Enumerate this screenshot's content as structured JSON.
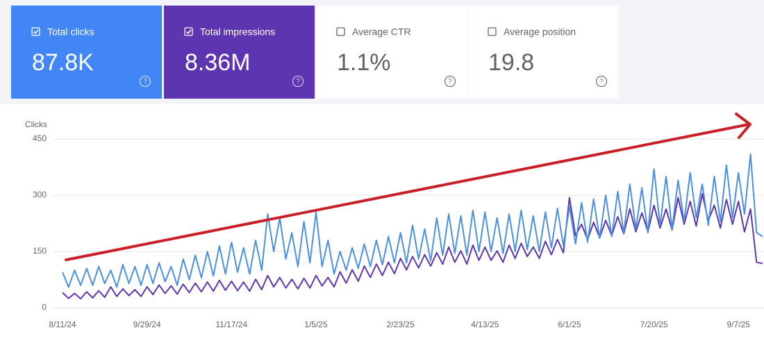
{
  "cards": [
    {
      "label": "Total clicks",
      "value": "87.8K",
      "checked": true,
      "color": "#4285f4"
    },
    {
      "label": "Total impressions",
      "value": "8.36M",
      "checked": true,
      "color": "#5e35b1"
    },
    {
      "label": "Average CTR",
      "value": "1.1%",
      "checked": false,
      "color": "#ffffff"
    },
    {
      "label": "Average position",
      "value": "19.8",
      "checked": false,
      "color": "#ffffff"
    }
  ],
  "chart_data": {
    "type": "line",
    "ylabel": "Clicks",
    "categories": [
      "8/11/24",
      null,
      null,
      null,
      null,
      null,
      null,
      null,
      null,
      null,
      null,
      null,
      null,
      null,
      "9/29/24",
      null,
      null,
      null,
      null,
      null,
      null,
      null,
      null,
      null,
      null,
      null,
      null,
      null,
      "11/17/24",
      null,
      null,
      null,
      null,
      null,
      null,
      null,
      null,
      null,
      null,
      null,
      null,
      null,
      "1/5/25",
      null,
      null,
      null,
      null,
      null,
      null,
      null,
      null,
      null,
      null,
      null,
      null,
      null,
      "2/23/25",
      null,
      null,
      null,
      null,
      null,
      null,
      null,
      null,
      null,
      null,
      null,
      null,
      null,
      "4/13/25",
      null,
      null,
      null,
      null,
      null,
      null,
      null,
      null,
      null,
      null,
      null,
      null,
      null,
      "6/1/25",
      null,
      null,
      null,
      null,
      null,
      null,
      null,
      null,
      null,
      null,
      null,
      null,
      null,
      "7/20/25",
      null,
      null,
      null,
      null,
      null,
      null,
      null,
      null,
      null,
      null,
      null,
      null,
      null,
      "9/7/25",
      null,
      null,
      null,
      null
    ],
    "ylim": [
      0,
      450
    ],
    "yticks": [
      0,
      150,
      300,
      450
    ],
    "y2lim": [
      0,
      80000
    ],
    "grid": true,
    "series": [
      {
        "name": "Clicks",
        "color": "#4a90e2",
        "values": [
          95,
          55,
          100,
          60,
          105,
          60,
          110,
          65,
          100,
          55,
          115,
          65,
          110,
          60,
          115,
          65,
          120,
          70,
          110,
          60,
          130,
          75,
          140,
          80,
          150,
          85,
          165,
          90,
          175,
          95,
          160,
          90,
          180,
          100,
          250,
          150,
          240,
          130,
          200,
          110,
          230,
          120,
          255,
          110,
          180,
          90,
          150,
          100,
          160,
          105,
          170,
          110,
          180,
          115,
          190,
          120,
          200,
          120,
          220,
          130,
          210,
          125,
          240,
          140,
          250,
          145,
          245,
          140,
          260,
          150,
          255,
          150,
          240,
          145,
          250,
          150,
          260,
          155,
          245,
          150,
          255,
          160,
          265,
          165,
          270,
          170,
          280,
          175,
          290,
          185,
          300,
          190,
          310,
          200,
          330,
          210,
          320,
          200,
          370,
          220,
          350,
          210,
          340,
          230,
          360,
          240,
          330,
          220,
          350,
          230,
          380,
          240,
          360,
          250,
          410,
          200,
          190
        ]
      },
      {
        "name": "Impressions",
        "color": "#5e35b1",
        "axis": "y2",
        "values": [
          7200,
          4500,
          6800,
          4300,
          7600,
          4700,
          8100,
          5000,
          9900,
          5400,
          9000,
          5800,
          8600,
          5400,
          9900,
          6300,
          10800,
          6800,
          10400,
          6500,
          11200,
          7200,
          11700,
          7600,
          12200,
          7900,
          13000,
          8300,
          12600,
          8100,
          12200,
          7900,
          13500,
          8600,
          15300,
          9900,
          14400,
          9400,
          13500,
          9000,
          14000,
          9400,
          15300,
          10400,
          14400,
          9900,
          17100,
          11700,
          18000,
          12600,
          19800,
          14400,
          20700,
          15300,
          21600,
          16200,
          23400,
          18000,
          24300,
          18900,
          25200,
          19800,
          26100,
          20700,
          28800,
          21600,
          27000,
          20700,
          29700,
          22500,
          28800,
          22500,
          27000,
          21600,
          29700,
          23400,
          30600,
          24300,
          28800,
          23400,
          31500,
          25200,
          32400,
          26100,
          52200,
          34200,
          39600,
          32400,
          40500,
          33300,
          41400,
          34200,
          43200,
          35100,
          46800,
          36000,
          45000,
          36000,
          48600,
          37800,
          46800,
          36900,
          52200,
          39600,
          50400,
          38700,
          54000,
          41400,
          48600,
          37800,
          51300,
          39600,
          50400,
          36000,
          46800,
          21600,
          21000
        ]
      }
    ]
  }
}
